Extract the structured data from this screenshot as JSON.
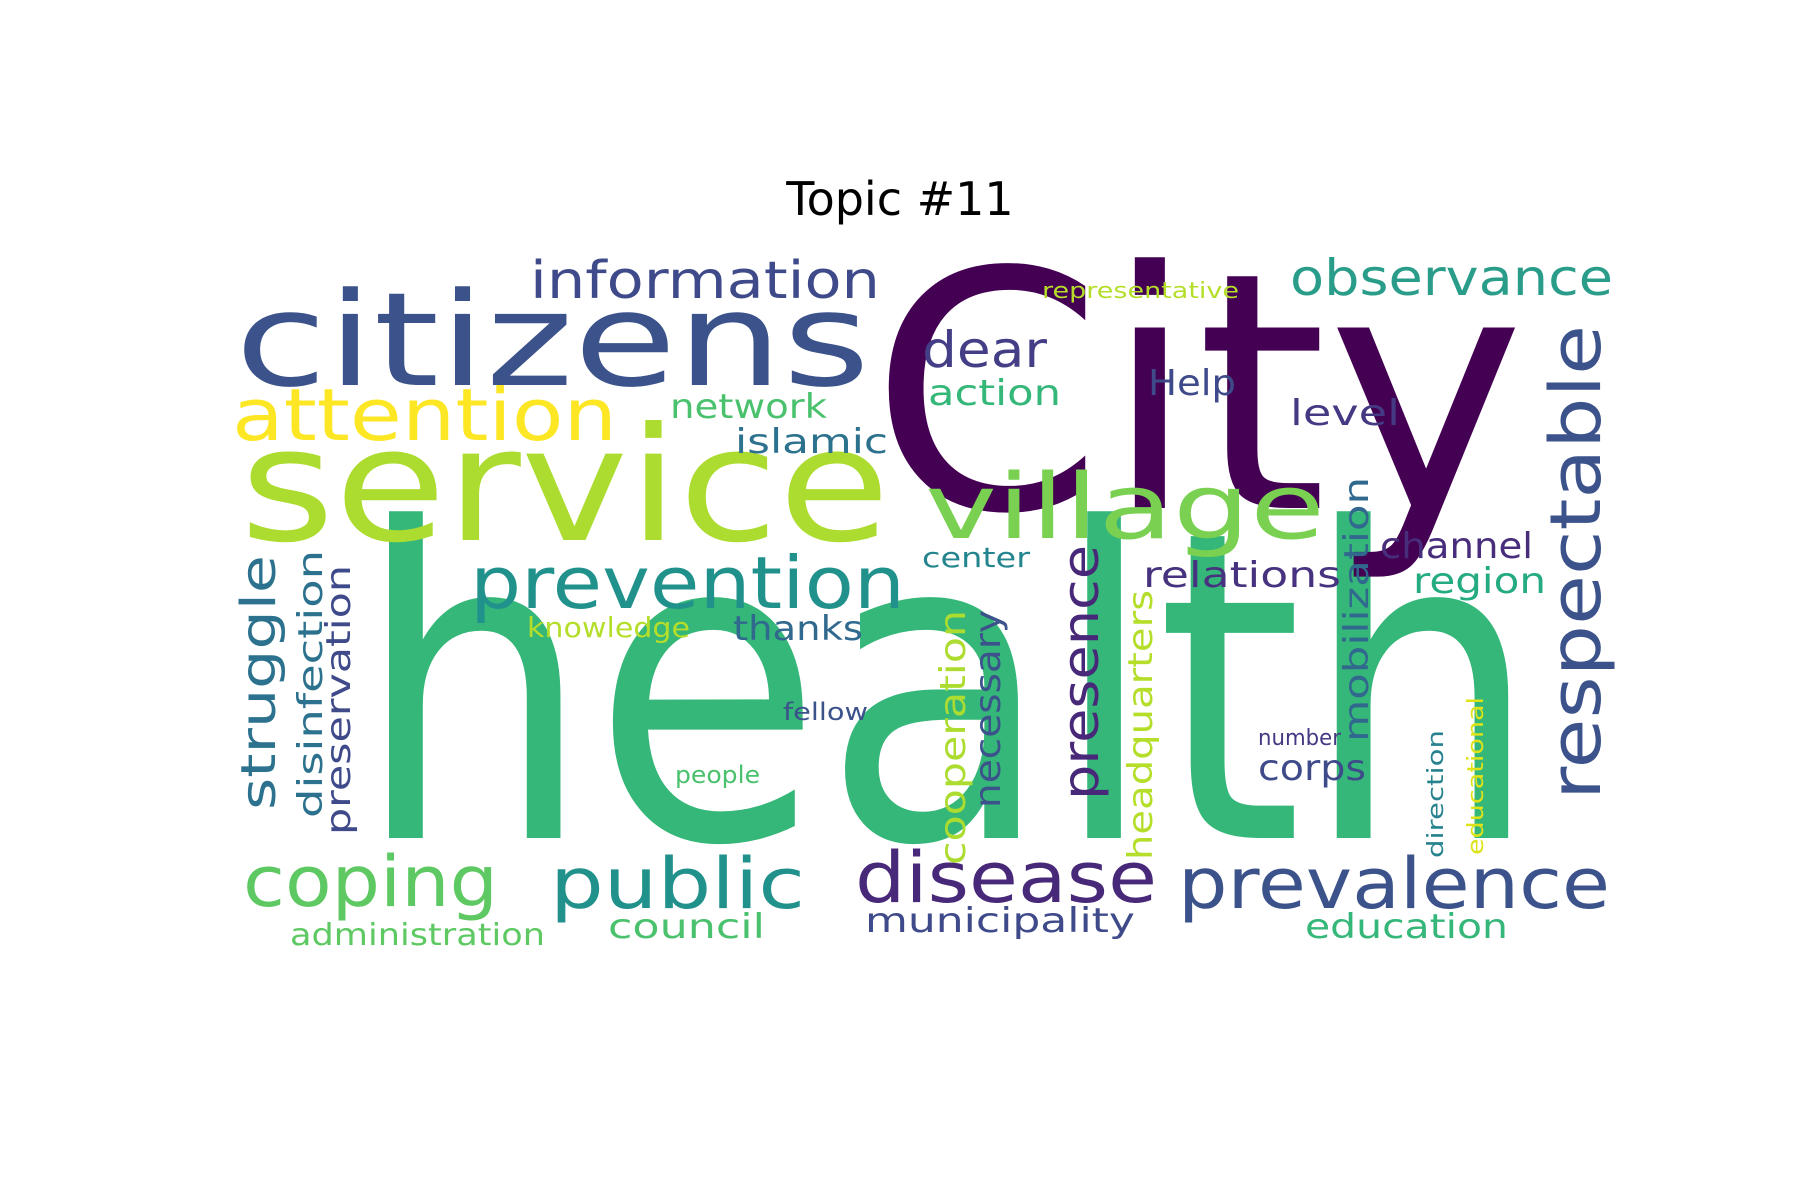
{
  "title": "Topic #11",
  "words": [
    {
      "text": "health",
      "color": "#35b779"
    },
    {
      "text": "City",
      "color": "#440154"
    },
    {
      "text": "service",
      "color": "#addc30"
    },
    {
      "text": "citizens",
      "color": "#3b528b"
    },
    {
      "text": "village",
      "color": "#7ad151"
    },
    {
      "text": "attention",
      "color": "#fde725"
    },
    {
      "text": "prevention",
      "color": "#21918c"
    },
    {
      "text": "respectable",
      "color": "#3b528b"
    },
    {
      "text": "information",
      "color": "#3e4a89"
    },
    {
      "text": "observance",
      "color": "#2a9d8a"
    },
    {
      "text": "disease",
      "color": "#482878"
    },
    {
      "text": "prevalence",
      "color": "#3b528b"
    },
    {
      "text": "coping",
      "color": "#5ec962"
    },
    {
      "text": "public",
      "color": "#21918c"
    },
    {
      "text": "presence",
      "color": "#482878"
    },
    {
      "text": "struggle",
      "color": "#2c728e"
    },
    {
      "text": "dear",
      "color": "#433e85"
    },
    {
      "text": "cooperation",
      "color": "#addc30"
    },
    {
      "text": "mobilization",
      "color": "#31688e"
    },
    {
      "text": "disinfection",
      "color": "#2c728e"
    },
    {
      "text": "preservation",
      "color": "#3e4a89"
    },
    {
      "text": "necessary",
      "color": "#3b528b"
    },
    {
      "text": "headquarters",
      "color": "#b5de2b"
    },
    {
      "text": "relations",
      "color": "#46327e"
    },
    {
      "text": "channel",
      "color": "#472d7b"
    },
    {
      "text": "region",
      "color": "#25ab82"
    },
    {
      "text": "Help",
      "color": "#3e4a89"
    },
    {
      "text": "level",
      "color": "#443983"
    },
    {
      "text": "action",
      "color": "#35b779"
    },
    {
      "text": "network",
      "color": "#4ac16d"
    },
    {
      "text": "islamic",
      "color": "#2c728e"
    },
    {
      "text": "thanks",
      "color": "#31688e"
    },
    {
      "text": "knowledge",
      "color": "#b5de2b"
    },
    {
      "text": "center",
      "color": "#25858e"
    },
    {
      "text": "corps",
      "color": "#3e4a89"
    },
    {
      "text": "municipality",
      "color": "#3e4a89"
    },
    {
      "text": "education",
      "color": "#35b779"
    },
    {
      "text": "council",
      "color": "#4ac16d"
    },
    {
      "text": "administration",
      "color": "#5ec962"
    },
    {
      "text": "representative",
      "color": "#b5de2b"
    },
    {
      "text": "fellow",
      "color": "#3b528b"
    },
    {
      "text": "people",
      "color": "#4ac16d"
    },
    {
      "text": "number",
      "color": "#443983"
    },
    {
      "text": "direction",
      "color": "#26828e"
    },
    {
      "text": "educational",
      "color": "#dde318"
    }
  ]
}
